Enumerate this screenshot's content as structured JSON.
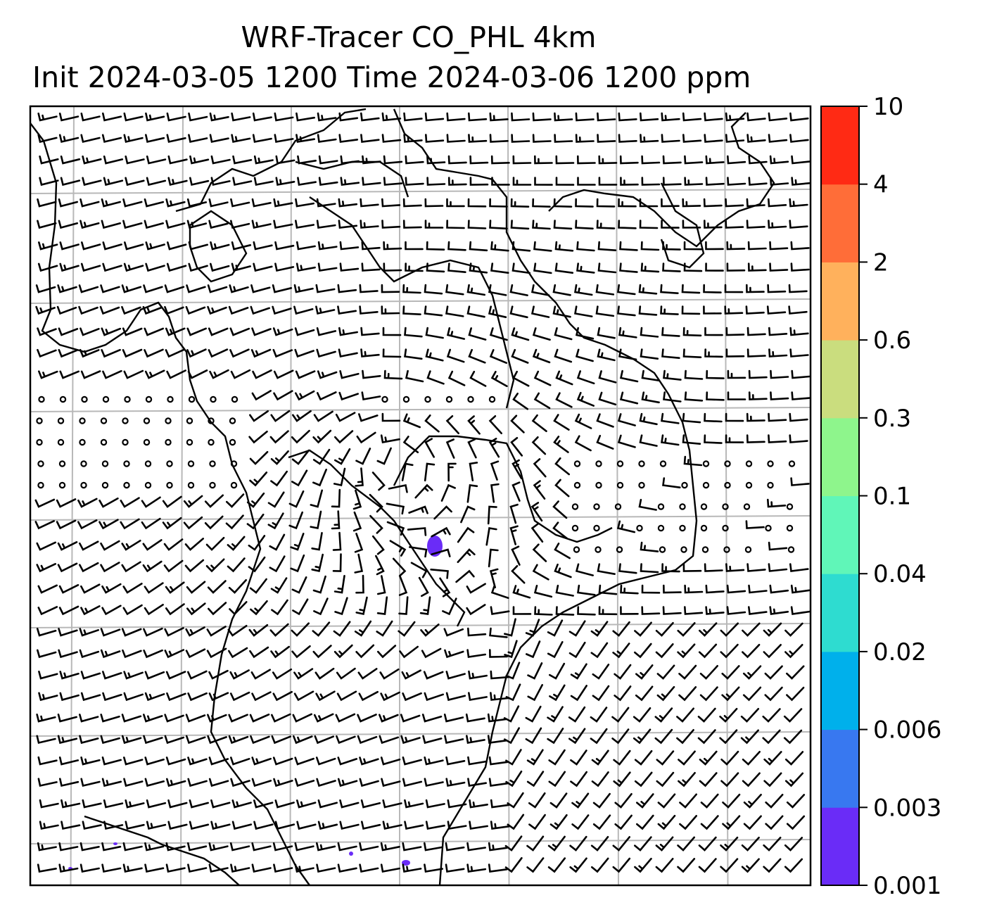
{
  "chart_data": {
    "type": "heatmap",
    "title_line1": "WRF-Tracer CO_PHL 4km",
    "title_line2": "Init 2024-03-05 1200 Time 2024-03-06 1200 ppm",
    "colorbar": {
      "levels": [
        "0.001",
        "0.003",
        "0.006",
        "0.02",
        "0.04",
        "0.1",
        "0.3",
        "0.6",
        "2",
        "4",
        "10"
      ],
      "colors": [
        "#6a2cf7",
        "#3878f0",
        "#00b0eb",
        "#2edcd0",
        "#60f6b8",
        "#8ef58c",
        "#cadd7e",
        "#ffb15c",
        "#ff6d38",
        "#ff2a14"
      ]
    },
    "grid": "on",
    "wind_barbs": "on",
    "coastlines": "on"
  }
}
